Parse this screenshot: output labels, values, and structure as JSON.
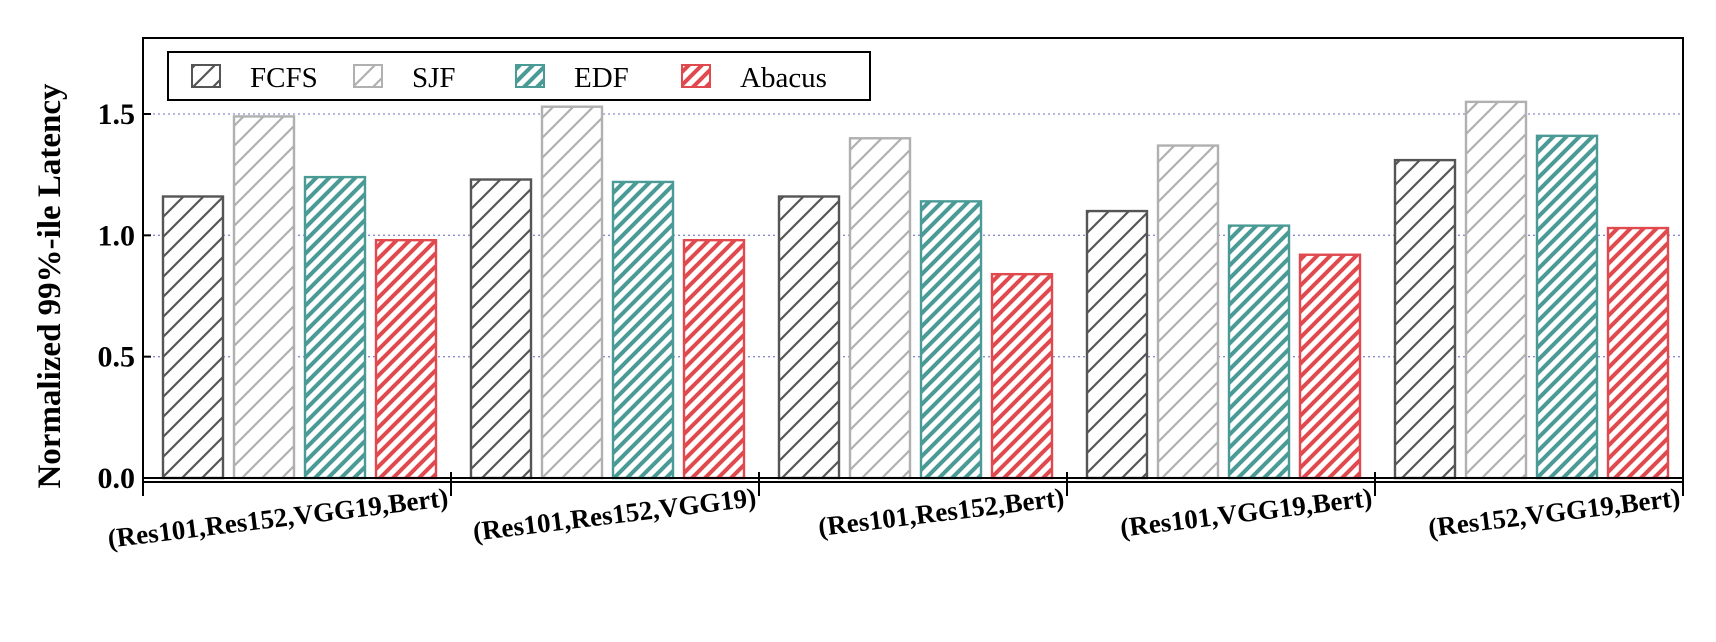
{
  "chart_data": {
    "type": "bar",
    "ylabel": "Normalized 99%-ile Latency",
    "xlabel": "",
    "ylim": [
      0,
      1.8
    ],
    "yticks": [
      "0.0",
      "0.5",
      "1.0",
      "1.5"
    ],
    "grid": "horizontal dotted",
    "legend_position": "top-left",
    "categories": [
      "(Res101,Res152,VGG19,Bert)",
      "(Res101,Res152,VGG19)",
      "(Res101,Res152,Bert)",
      "(Res101,VGG19,Bert)",
      "(Res152,VGG19,Bert)"
    ],
    "series": [
      {
        "name": "FCFS",
        "color": "#555555",
        "values": [
          1.16,
          1.23,
          1.16,
          1.1,
          1.31
        ]
      },
      {
        "name": "SJF",
        "color": "#b0b0b0",
        "values": [
          1.49,
          1.53,
          1.4,
          1.37,
          1.55
        ]
      },
      {
        "name": "EDF",
        "color": "#4a9a96",
        "values": [
          1.24,
          1.22,
          1.14,
          1.04,
          1.41
        ]
      },
      {
        "name": "Abacus",
        "color": "#e04a4f",
        "values": [
          0.98,
          0.98,
          0.84,
          0.92,
          1.03
        ]
      }
    ]
  }
}
